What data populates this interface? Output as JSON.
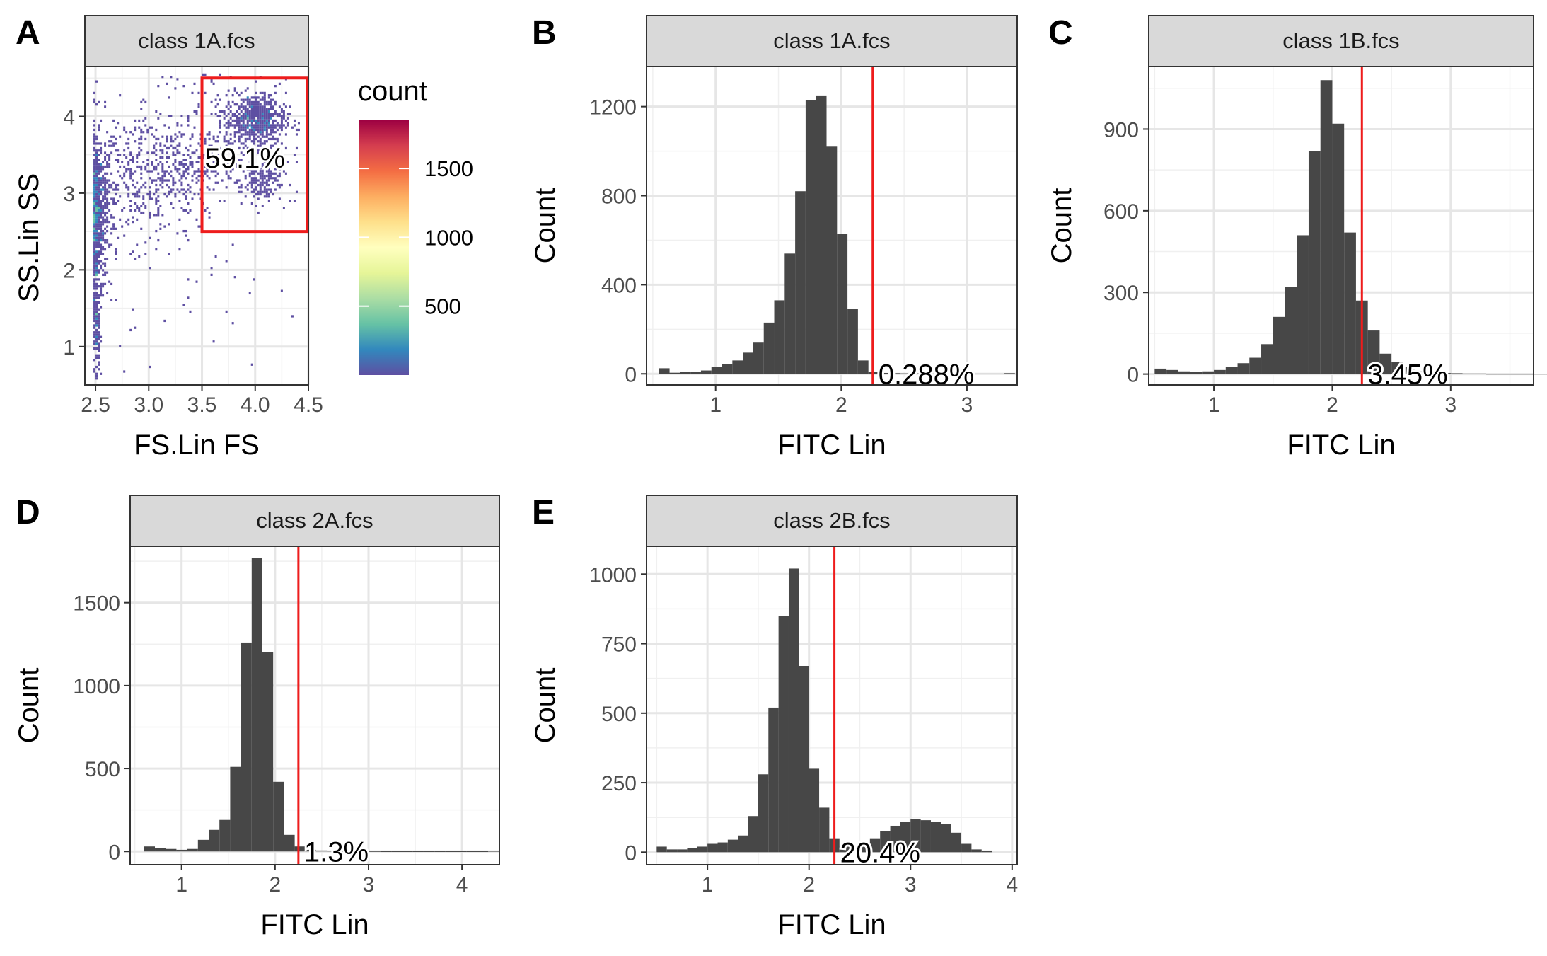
{
  "figure": {
    "panel_letters": [
      "A",
      "B",
      "C",
      "D",
      "E"
    ]
  },
  "chart_data": [
    {
      "panel": "A",
      "type": "heatmap",
      "facet_title": "class 1A.fcs",
      "xlabel": "FS.Lin FS",
      "ylabel": "SS.Lin SS",
      "xlim": [
        2.4,
        4.5
      ],
      "ylim": [
        0.5,
        4.65
      ],
      "xticks": [
        2.5,
        3.0,
        3.5,
        4.0,
        4.5
      ],
      "xtick_labels": [
        "2.5",
        "3.0",
        "3.5",
        "4.0",
        "4.5"
      ],
      "yticks": [
        1,
        2,
        3,
        4
      ],
      "ytick_labels": [
        "1",
        "2",
        "3",
        "4"
      ],
      "gate": {
        "x": [
          3.5,
          4.5
        ],
        "y": [
          2.5,
          4.5
        ],
        "color": "#ee1c1c"
      },
      "gate_label": "59.1%",
      "legend": {
        "title": "count",
        "breaks": [
          500,
          1000,
          1500
        ],
        "break_labels": [
          "500",
          "1000",
          "1500"
        ],
        "range": [
          0,
          1850
        ],
        "palette": "Spectral (reversed)",
        "placement": "right"
      },
      "clusters": [
        {
          "x": 2.52,
          "y": 2.75,
          "sx": 0.06,
          "sy": 0.45,
          "n": 650
        },
        {
          "x": 2.51,
          "y": 1.5,
          "sx": 0.02,
          "sy": 0.55,
          "n": 220
        },
        {
          "x": 2.85,
          "y": 3.2,
          "sx": 0.3,
          "sy": 0.4,
          "n": 380
        },
        {
          "x": 3.3,
          "y": 3.35,
          "sx": 0.22,
          "sy": 0.25,
          "n": 180
        },
        {
          "x": 4.0,
          "y": 3.95,
          "sx": 0.14,
          "sy": 0.17,
          "n": 650
        },
        {
          "x": 4.05,
          "y": 3.15,
          "sx": 0.1,
          "sy": 0.14,
          "n": 160
        },
        {
          "x": 3.7,
          "y": 3.8,
          "sx": 0.4,
          "sy": 0.55,
          "n": 240
        },
        {
          "x": 3.0,
          "y": 2.6,
          "sx": 0.6,
          "sy": 1.0,
          "n": 70
        }
      ]
    },
    {
      "panel": "B",
      "type": "bar",
      "facet_title": "class 1A.fcs",
      "xlabel": "FITC Lin",
      "ylabel": "Count",
      "xlim": [
        0.45,
        3.4
      ],
      "ylim": [
        -50,
        1380
      ],
      "xticks": [
        1,
        2,
        3
      ],
      "xtick_labels": [
        "1",
        "2",
        "3"
      ],
      "yticks": [
        0,
        400,
        800,
        1200
      ],
      "ytick_labels": [
        "0",
        "400",
        "800",
        "1200"
      ],
      "bin_start": 0.55,
      "bin_width": 0.0833,
      "values": [
        25,
        5,
        8,
        10,
        15,
        30,
        45,
        60,
        95,
        140,
        230,
        330,
        540,
        820,
        1230,
        1250,
        1020,
        630,
        290,
        60,
        10,
        4,
        3,
        2,
        2,
        2,
        1,
        1,
        1,
        1,
        1,
        1,
        1,
        3
      ],
      "threshold": 2.25,
      "threshold_color": "#ee1c1c",
      "annotation": "0.288%"
    },
    {
      "panel": "C",
      "type": "bar",
      "facet_title": "class 1B.fcs",
      "xlabel": "FITC Lin",
      "ylabel": "Count",
      "xlim": [
        0.45,
        3.7
      ],
      "ylim": [
        -40,
        1130
      ],
      "xticks": [
        1,
        2,
        3
      ],
      "xtick_labels": [
        "1",
        "2",
        "3"
      ],
      "yticks": [
        0,
        300,
        600,
        900
      ],
      "ytick_labels": [
        "0",
        "300",
        "600",
        "900"
      ],
      "bin_start": 0.5,
      "bin_width": 0.1,
      "values": [
        20,
        15,
        10,
        8,
        10,
        15,
        25,
        40,
        60,
        110,
        210,
        320,
        510,
        820,
        1080,
        920,
        520,
        270,
        160,
        75,
        45,
        25,
        10,
        6,
        4,
        3,
        2,
        2,
        1,
        1,
        1,
        1,
        1,
        1,
        4
      ],
      "threshold": 2.25,
      "threshold_color": "#ee1c1c",
      "annotation": "3.45%"
    },
    {
      "panel": "D",
      "type": "bar",
      "facet_title": "class 2A.fcs",
      "xlabel": "FITC Lin",
      "ylabel": "Count",
      "xlim": [
        0.45,
        4.4
      ],
      "ylim": [
        -80,
        1840
      ],
      "xticks": [
        1,
        2,
        3,
        4
      ],
      "xtick_labels": [
        "1",
        "2",
        "3",
        "4"
      ],
      "yticks": [
        0,
        500,
        1000,
        1500
      ],
      "ytick_labels": [
        "0",
        "500",
        "1000",
        "1500"
      ],
      "bin_start": 0.6,
      "bin_width": 0.115,
      "values": [
        30,
        20,
        15,
        10,
        15,
        70,
        130,
        190,
        510,
        1260,
        1770,
        1200,
        420,
        100,
        30,
        10,
        6,
        4,
        3,
        2,
        2,
        2,
        1,
        1,
        1,
        1,
        1,
        1,
        1,
        1,
        1,
        1,
        3
      ],
      "threshold": 2.25,
      "threshold_color": "#ee1c1c",
      "annotation": "1.3%"
    },
    {
      "panel": "E",
      "type": "bar",
      "facet_title": "class 2B.fcs",
      "xlabel": "FITC Lin",
      "ylabel": "Count",
      "xlim": [
        0.4,
        4.05
      ],
      "ylim": [
        -45,
        1100
      ],
      "xticks": [
        1,
        2,
        3,
        4
      ],
      "xtick_labels": [
        "1",
        "2",
        "3",
        "4"
      ],
      "yticks": [
        0,
        250,
        500,
        750,
        1000
      ],
      "ytick_labels": [
        "0",
        "250",
        "500",
        "750",
        "1000"
      ],
      "bin_start": 0.5,
      "bin_width": 0.1,
      "values": [
        20,
        10,
        10,
        15,
        20,
        30,
        35,
        45,
        60,
        130,
        280,
        520,
        850,
        1020,
        670,
        300,
        160,
        50,
        20,
        15,
        20,
        50,
        75,
        95,
        110,
        120,
        115,
        110,
        100,
        70,
        30,
        10,
        6
      ],
      "threshold": 2.25,
      "threshold_color": "#ee1c1c",
      "annotation": "20.4%"
    }
  ]
}
